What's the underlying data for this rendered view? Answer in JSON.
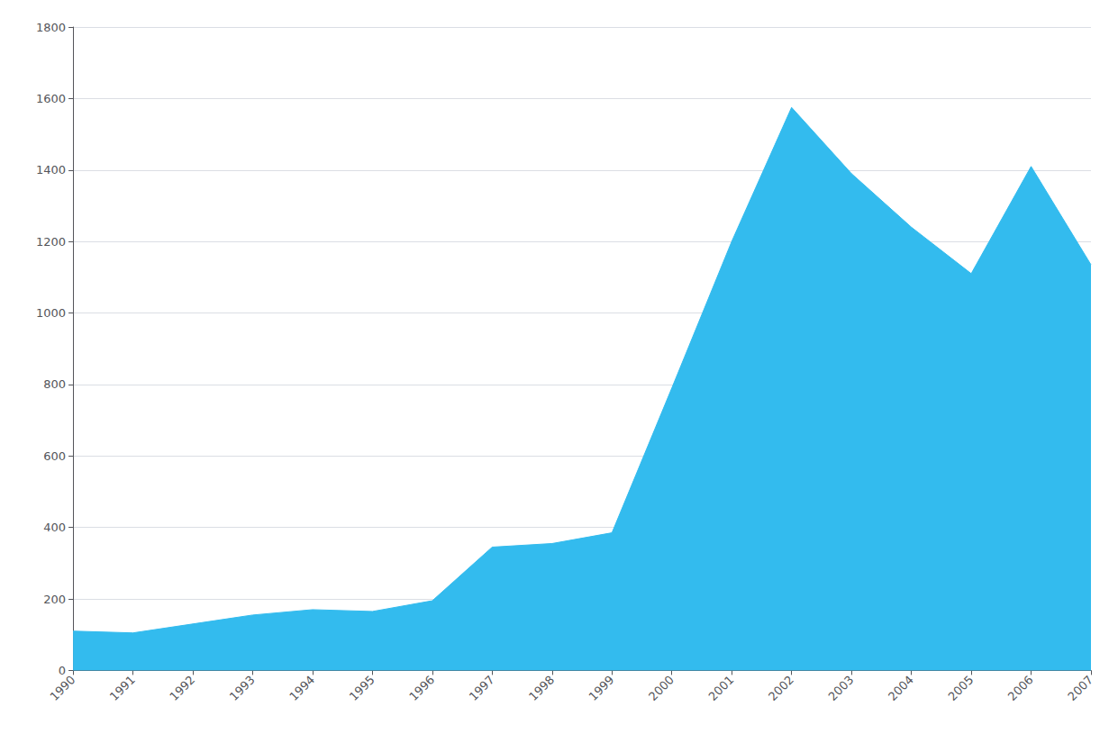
{
  "chart_data": {
    "type": "area",
    "x": [
      1990,
      1991,
      1992,
      1993,
      1994,
      1995,
      1996,
      1997,
      1998,
      1999,
      2000,
      2001,
      2002,
      2003,
      2004,
      2005,
      2006,
      2007
    ],
    "values": [
      110,
      105,
      130,
      155,
      170,
      165,
      195,
      345,
      355,
      385,
      790,
      1200,
      1575,
      1390,
      1240,
      1110,
      1410,
      1135
    ],
    "color": "#33BBEE",
    "xlim": [
      1990,
      2007
    ],
    "xticks": [
      1990,
      1991,
      1992,
      1993,
      1994,
      1995,
      1996,
      1997,
      1998,
      1999,
      2000,
      2001,
      2002,
      2003,
      2004,
      2005,
      2006,
      2007
    ],
    "ylim": [
      0,
      1800
    ],
    "yticks": [
      0,
      200,
      400,
      600,
      800,
      1000,
      1200,
      1400,
      1600,
      1800
    ],
    "grid": true
  }
}
